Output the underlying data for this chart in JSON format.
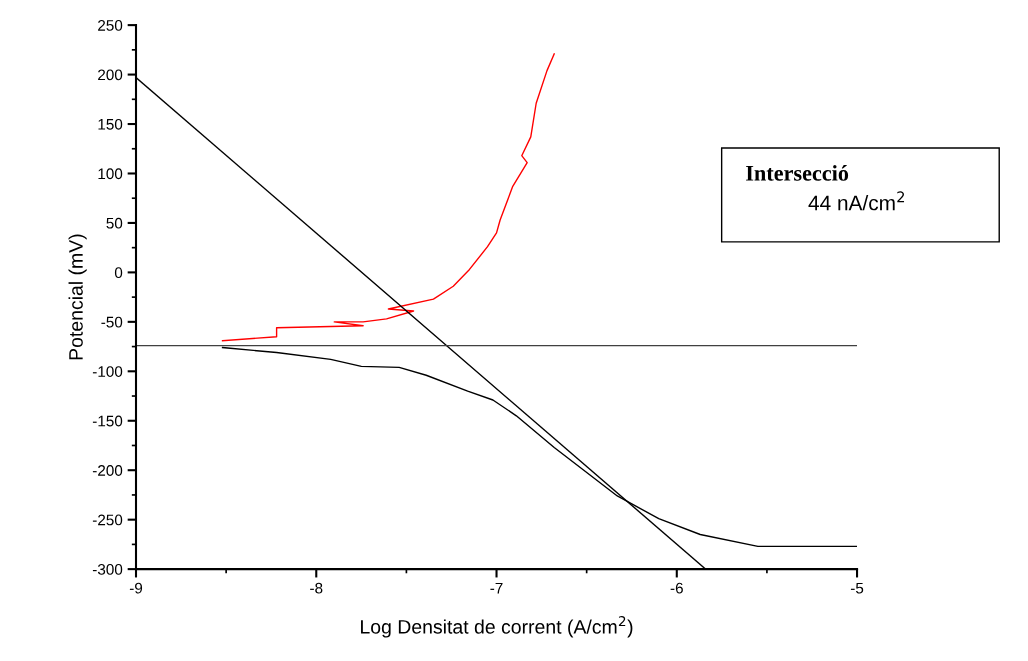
{
  "chart_data": {
    "type": "line",
    "xlabel": "Log Densitat de corrent (A/cm$^{2}$)",
    "ylabel": "Potencial (mV)",
    "xlim": [
      -9,
      -5
    ],
    "xticks": [
      -9,
      -8,
      -7,
      -6,
      -5
    ],
    "ylim": [
      -300,
      250
    ],
    "yticks": [
      -300,
      -250,
      -200,
      -150,
      -100,
      -50,
      0,
      50,
      100,
      150,
      200,
      250
    ],
    "series": [
      {
        "color": "#ff0000",
        "x": [
          -8.52,
          -8.22,
          -8.22,
          -7.74,
          -7.9,
          -7.74,
          -7.61,
          -7.46,
          -7.6,
          -7.35,
          -7.24,
          -7.15,
          -7.05,
          -7.0,
          -6.98,
          -6.91,
          -6.83,
          -6.86,
          -6.81,
          -6.78,
          -6.72,
          -6.68
        ],
        "values": [
          -69,
          -65,
          -56,
          -54,
          -50,
          -50,
          -47,
          -39,
          -37,
          -27,
          -14,
          3,
          26,
          40,
          53,
          87,
          111,
          118,
          137,
          171,
          204,
          221
        ]
      },
      {
        "color": "#000000",
        "x": [
          -8.52,
          -8.22,
          -7.92,
          -7.75,
          -7.54,
          -7.39,
          -7.16,
          -7.02,
          -6.89,
          -6.68,
          -6.33,
          -6.1,
          -5.87,
          -5.55,
          -5.0
        ],
        "values": [
          -76,
          -81,
          -88,
          -95,
          -96,
          -104,
          -120,
          -129,
          -145,
          -177,
          -226,
          -249,
          -265,
          -277,
          -277
        ]
      },
      {
        "color": "#000000",
        "x": [
          -9,
          -5.84
        ],
        "values": [
          197,
          -300
        ]
      }
    ],
    "ref_lines": [
      {
        "axis": "y",
        "value": -74,
        "color": "#404040"
      }
    ],
    "annotations": [
      "Intersecció",
      "44 nA/cm$^{2}$"
    ],
    "grid": false,
    "legend": false
  }
}
